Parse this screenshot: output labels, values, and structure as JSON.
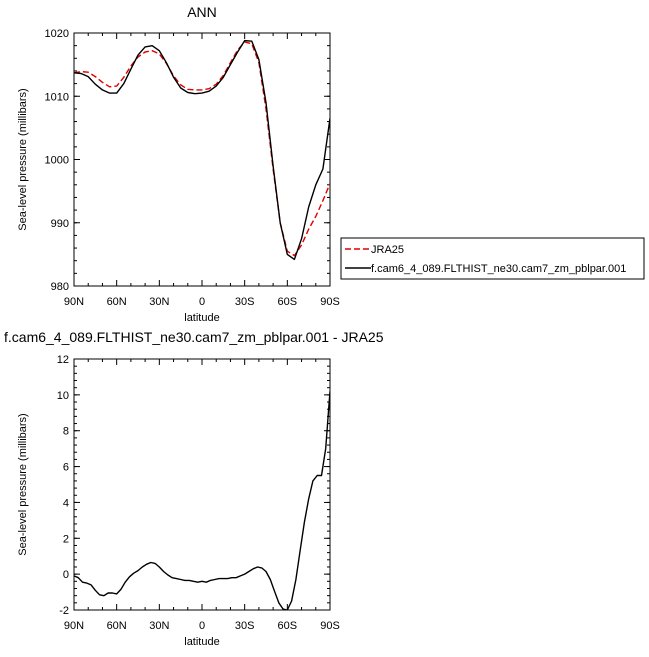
{
  "chart_data": [
    {
      "type": "line",
      "title": "ANN",
      "xlabel": "latitude",
      "ylabel": "Sea-level pressure (millibars)",
      "xlim": [
        90,
        -90
      ],
      "ylim": [
        980,
        1020
      ],
      "x_ticks": [
        {
          "value": 90,
          "label": "90N"
        },
        {
          "value": 60,
          "label": "60N"
        },
        {
          "value": 30,
          "label": "30N"
        },
        {
          "value": 0,
          "label": "0"
        },
        {
          "value": -30,
          "label": "30S"
        },
        {
          "value": -60,
          "label": "60S"
        },
        {
          "value": -90,
          "label": "90S"
        }
      ],
      "y_ticks": [
        {
          "value": 1020,
          "label": "1020"
        },
        {
          "value": 1010,
          "label": "1010"
        },
        {
          "value": 1000,
          "label": "1000"
        },
        {
          "value": 990,
          "label": "990"
        },
        {
          "value": 980,
          "label": "980"
        }
      ],
      "legend_position": "right",
      "series": [
        {
          "name": "JRA25",
          "color": "#e00000",
          "dash": "dashed",
          "x": [
            90,
            85,
            80,
            75,
            70,
            65,
            60,
            55,
            50,
            45,
            40,
            35,
            30,
            25,
            20,
            15,
            10,
            5,
            0,
            -5,
            -10,
            -15,
            -20,
            -25,
            -30,
            -35,
            -40,
            -45,
            -50,
            -55,
            -60,
            -65,
            -70,
            -75,
            -80,
            -85,
            -90
          ],
          "y": [
            1013.7,
            1013.9,
            1013.8,
            1013.1,
            1012.2,
            1011.5,
            1011.6,
            1013.0,
            1014.8,
            1016.2,
            1017.0,
            1017.2,
            1016.7,
            1015.2,
            1013.2,
            1011.8,
            1011.1,
            1011.0,
            1011.0,
            1011.2,
            1011.9,
            1013.3,
            1015.3,
            1017.3,
            1018.6,
            1018.3,
            1015.3,
            1008.0,
            998.5,
            990.0,
            985.5,
            984.8,
            986.5,
            989.0,
            991.0,
            993.5,
            996.2
          ]
        },
        {
          "name": "f.cam6_4_089.FLTHIST_ne30.cam7_zm_pblpar.001",
          "color": "#000000",
          "dash": "solid",
          "x": [
            90,
            85,
            80,
            75,
            70,
            65,
            60,
            55,
            50,
            45,
            40,
            35,
            30,
            25,
            20,
            15,
            10,
            5,
            0,
            -5,
            -10,
            -15,
            -20,
            -25,
            -30,
            -35,
            -40,
            -45,
            -50,
            -55,
            -60,
            -65,
            -70,
            -75,
            -80,
            -85,
            -90
          ],
          "y": [
            1013.7,
            1013.6,
            1013.1,
            1011.9,
            1011.0,
            1010.5,
            1010.5,
            1012.0,
            1014.3,
            1016.5,
            1017.8,
            1018.0,
            1017.2,
            1015.3,
            1013.0,
            1011.3,
            1010.6,
            1010.4,
            1010.5,
            1010.8,
            1011.6,
            1013.0,
            1015.0,
            1017.0,
            1018.8,
            1018.7,
            1015.8,
            1009.0,
            999.0,
            990.0,
            985.0,
            984.2,
            987.5,
            992.5,
            996.0,
            998.5,
            1006.5
          ]
        }
      ]
    },
    {
      "type": "line",
      "title": "f.cam6_4_089.FLTHIST_ne30.cam7_zm_pblpar.001 - JRA25",
      "xlabel": "latitude",
      "ylabel": "Sea-level pressure (millibars)",
      "xlim": [
        90,
        -90
      ],
      "ylim": [
        -2,
        12
      ],
      "x_ticks": [
        {
          "value": 90,
          "label": "90N"
        },
        {
          "value": 60,
          "label": "60N"
        },
        {
          "value": 30,
          "label": "30N"
        },
        {
          "value": 0,
          "label": "0"
        },
        {
          "value": -30,
          "label": "30S"
        },
        {
          "value": -60,
          "label": "60S"
        },
        {
          "value": -90,
          "label": "90S"
        }
      ],
      "y_ticks": [
        {
          "value": 12,
          "label": "12"
        },
        {
          "value": 10,
          "label": "10"
        },
        {
          "value": 8,
          "label": "8"
        },
        {
          "value": 6,
          "label": "6"
        },
        {
          "value": 4,
          "label": "4"
        },
        {
          "value": 2,
          "label": "2"
        },
        {
          "value": 0,
          "label": "0"
        },
        {
          "value": -2,
          "label": "-2"
        }
      ],
      "series": [
        {
          "color": "#000000",
          "dash": "solid",
          "x": [
            90,
            87,
            84,
            81,
            78,
            75,
            72,
            69,
            66,
            63,
            60,
            57,
            54,
            51,
            48,
            45,
            42,
            39,
            36,
            33,
            30,
            27,
            24,
            21,
            18,
            15,
            12,
            9,
            6,
            3,
            0,
            -3,
            -6,
            -9,
            -12,
            -15,
            -18,
            -21,
            -24,
            -27,
            -30,
            -33,
            -36,
            -39,
            -42,
            -45,
            -48,
            -51,
            -54,
            -57,
            -60,
            -63,
            -66,
            -69,
            -72,
            -75,
            -78,
            -81,
            -84,
            -87,
            -90
          ],
          "y": [
            -0.1,
            -0.2,
            -0.45,
            -0.5,
            -0.6,
            -0.9,
            -1.15,
            -1.2,
            -1.05,
            -1.05,
            -1.1,
            -0.85,
            -0.45,
            -0.15,
            0.05,
            0.2,
            0.4,
            0.55,
            0.65,
            0.6,
            0.4,
            0.15,
            -0.05,
            -0.2,
            -0.25,
            -0.3,
            -0.35,
            -0.35,
            -0.4,
            -0.45,
            -0.4,
            -0.45,
            -0.35,
            -0.3,
            -0.25,
            -0.25,
            -0.25,
            -0.2,
            -0.2,
            -0.1,
            0.0,
            0.15,
            0.3,
            0.4,
            0.35,
            0.15,
            -0.3,
            -0.95,
            -1.6,
            -1.95,
            -2.0,
            -1.5,
            -0.3,
            1.3,
            2.9,
            4.2,
            5.2,
            5.5,
            5.5,
            7.0,
            10.2
          ]
        }
      ]
    }
  ]
}
